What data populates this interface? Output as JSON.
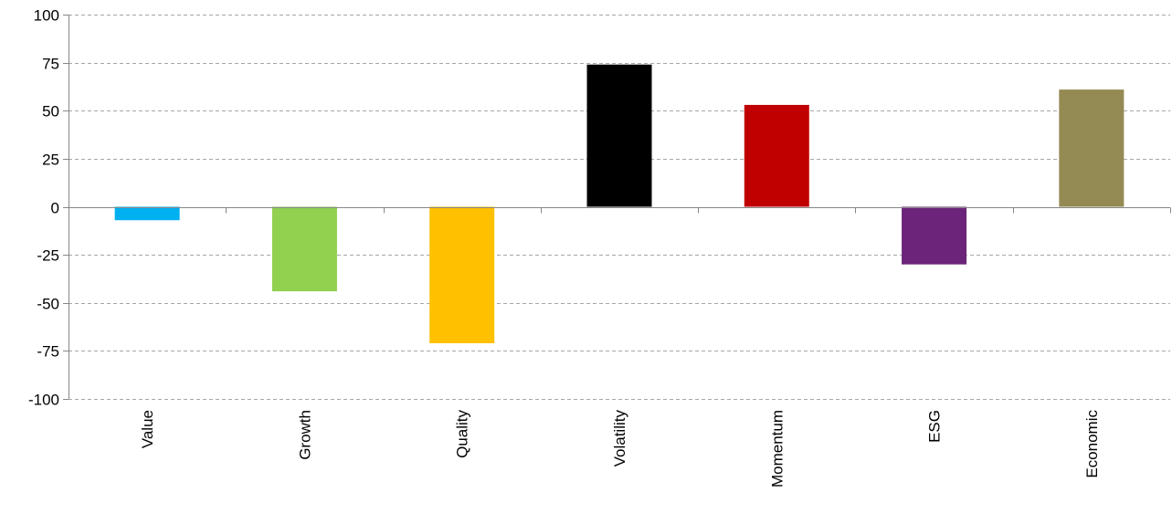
{
  "chart_data": {
    "type": "bar",
    "title": "",
    "xlabel": "",
    "ylabel": "",
    "categories": [
      "Value",
      "Growth",
      "Quality",
      "Volatility",
      "Momentum",
      "ESG",
      "Economic"
    ],
    "values": [
      -7,
      -44,
      -71,
      74,
      53,
      -30,
      61
    ],
    "colors": [
      "#00b0f0",
      "#92d050",
      "#ffc000",
      "#000000",
      "#c00000",
      "#6b2479",
      "#948a54"
    ],
    "ylim": [
      -100,
      100
    ],
    "yticks": [
      100,
      75,
      50,
      25,
      0,
      -25,
      -50,
      -75,
      -100
    ],
    "ytick_labels": [
      "100",
      "75",
      "50",
      "25",
      "0",
      "-25",
      "-50",
      "-75",
      "-100"
    ],
    "grid": true,
    "grid_style": "dashed",
    "legend": "none"
  }
}
